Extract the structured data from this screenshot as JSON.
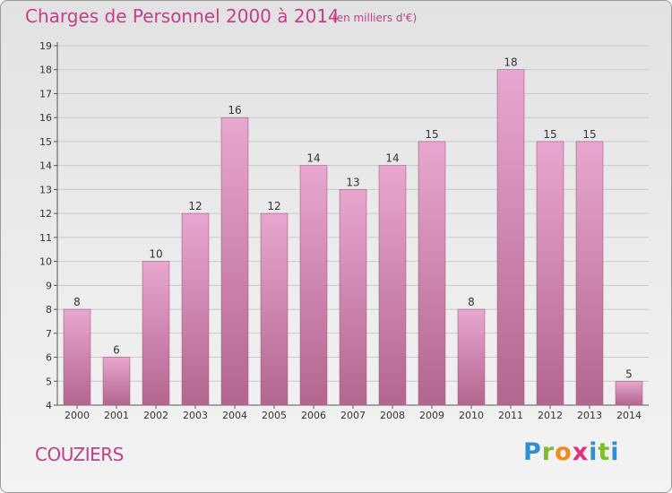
{
  "header": {
    "title": "Charges de Personnel 2000 à 2014",
    "subtitle": "(en milliers d'€)"
  },
  "footer": {
    "commune": "COUZIERS",
    "logo_letters": [
      "P",
      "r",
      "o",
      "x",
      "i",
      "t",
      "i"
    ]
  },
  "colors": {
    "title": "#c2408a",
    "bar_top": "#e8a7d0",
    "bar_bottom": "#b2658f",
    "grid": "#c9c9c9"
  },
  "chart_data": {
    "type": "bar",
    "title": "Charges de Personnel 2000 à 2014",
    "subtitle": "(en milliers d'€)",
    "categories": [
      "2000",
      "2001",
      "2002",
      "2003",
      "2004",
      "2005",
      "2006",
      "2007",
      "2008",
      "2009",
      "2010",
      "2011",
      "2012",
      "2013",
      "2014"
    ],
    "values": [
      8,
      6,
      10,
      12,
      16,
      12,
      14,
      13,
      14,
      15,
      8,
      18,
      15,
      15,
      5
    ],
    "ylim": [
      4,
      19
    ],
    "yticks": [
      4,
      5,
      6,
      7,
      8,
      9,
      10,
      11,
      12,
      13,
      14,
      15,
      16,
      17,
      18,
      19
    ],
    "grid": true,
    "data_labels": true
  }
}
